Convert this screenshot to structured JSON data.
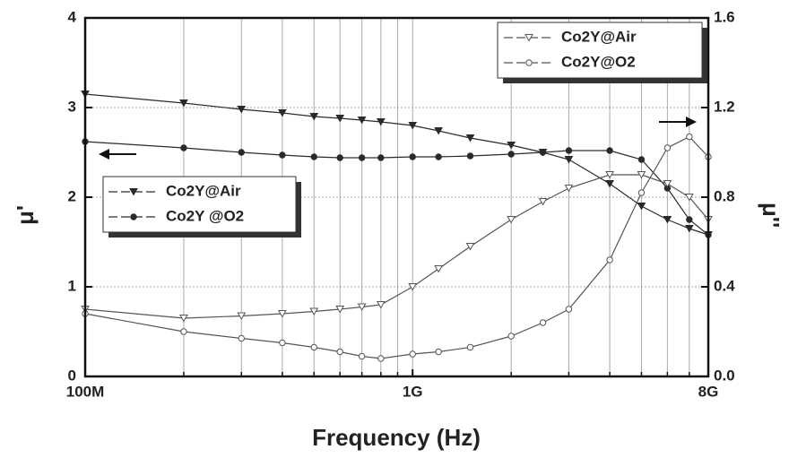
{
  "chart_data": {
    "type": "line",
    "xlabel": "Frequency (Hz)",
    "ylabel": "μ'",
    "y2label": "μ''",
    "xscale": "log",
    "xlim": [
      100000000,
      8000000000
    ],
    "xticks": [
      {
        "value": 100000000,
        "label": "100M"
      },
      {
        "value": 1000000000,
        "label": "1G"
      },
      {
        "value": 8000000000,
        "label": "8G"
      }
    ],
    "xminor_ticks": [
      200000000,
      300000000,
      400000000,
      500000000,
      600000000,
      700000000,
      800000000,
      900000000,
      2000000000,
      3000000000,
      4000000000,
      5000000000,
      6000000000,
      7000000000
    ],
    "ylim": [
      0,
      4
    ],
    "yticks": [
      0,
      1,
      2,
      3,
      4
    ],
    "y2lim": [
      0,
      1.6
    ],
    "y2ticks": [
      {
        "value": 0,
        "label": "0.0"
      },
      0.4,
      0.8,
      1.2,
      1.6
    ],
    "grid": true,
    "x": [
      100000000,
      200000000,
      300000000,
      400000000,
      500000000,
      600000000,
      700000000,
      800000000,
      1000000000,
      1200000000,
      1500000000,
      2000000000,
      2500000000,
      3000000000,
      4000000000,
      5000000000,
      6000000000,
      7000000000,
      8000000000
    ],
    "series": [
      {
        "name": "Co2Y@Air",
        "color": "#2a2a2a",
        "marker": "triangle-down",
        "filled": true,
        "axis": "y",
        "values": [
          3.15,
          3.05,
          2.98,
          2.94,
          2.9,
          2.88,
          2.86,
          2.84,
          2.8,
          2.74,
          2.66,
          2.58,
          2.5,
          2.42,
          2.15,
          1.9,
          1.75,
          1.65,
          1.58
        ]
      },
      {
        "name": "Co2Y @O2",
        "color": "#2a2a2a",
        "marker": "circle",
        "filled": true,
        "axis": "y",
        "values": [
          2.62,
          2.55,
          2.5,
          2.47,
          2.45,
          2.44,
          2.44,
          2.44,
          2.45,
          2.45,
          2.46,
          2.48,
          2.5,
          2.52,
          2.52,
          2.42,
          2.1,
          1.75,
          1.58
        ]
      },
      {
        "name": "Co2Y@Air",
        "color": "#555555",
        "marker": "triangle-down",
        "filled": false,
        "axis": "y2",
        "values": [
          0.3,
          0.26,
          0.27,
          0.28,
          0.29,
          0.3,
          0.31,
          0.32,
          0.4,
          0.48,
          0.58,
          0.7,
          0.78,
          0.84,
          0.9,
          0.9,
          0.86,
          0.8,
          0.7
        ]
      },
      {
        "name": "Co2Y@O2",
        "color": "#555555",
        "marker": "circle",
        "filled": false,
        "axis": "y2",
        "values": [
          0.28,
          0.2,
          0.17,
          0.15,
          0.13,
          0.11,
          0.09,
          0.08,
          0.1,
          0.11,
          0.13,
          0.18,
          0.24,
          0.3,
          0.52,
          0.82,
          1.02,
          1.07,
          0.98
        ]
      }
    ]
  }
}
